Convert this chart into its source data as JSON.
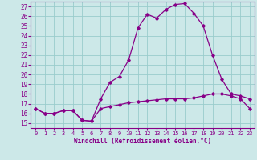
{
  "xlabel": "Windchill (Refroidissement éolien,°C)",
  "bg_color": "#cce8e8",
  "line_color": "#880088",
  "grid_color": "#99cccc",
  "xlim": [
    -0.5,
    23.5
  ],
  "ylim": [
    14.5,
    27.5
  ],
  "yticks": [
    15,
    16,
    17,
    18,
    19,
    20,
    21,
    22,
    23,
    24,
    25,
    26,
    27
  ],
  "xticks": [
    0,
    1,
    2,
    3,
    4,
    5,
    6,
    7,
    8,
    9,
    10,
    11,
    12,
    13,
    14,
    15,
    16,
    17,
    18,
    19,
    20,
    21,
    22,
    23
  ],
  "series1_x": [
    0,
    1,
    2,
    3,
    4,
    5,
    6,
    7,
    8,
    9,
    10,
    11,
    12,
    13,
    14,
    15,
    16,
    17,
    18,
    19,
    20,
    21,
    22,
    23
  ],
  "series1_y": [
    16.5,
    16.0,
    16.0,
    16.3,
    16.3,
    15.3,
    15.2,
    16.5,
    16.7,
    16.9,
    17.1,
    17.2,
    17.3,
    17.4,
    17.5,
    17.5,
    17.5,
    17.6,
    17.8,
    18.0,
    18.0,
    17.8,
    17.5,
    16.5
  ],
  "series2_x": [
    0,
    1,
    2,
    3,
    4,
    5,
    6,
    7,
    8,
    9,
    10,
    11,
    12,
    13,
    14,
    15,
    16,
    17,
    18,
    19,
    20,
    21,
    22,
    23
  ],
  "series2_y": [
    16.5,
    16.0,
    16.0,
    16.3,
    16.3,
    15.3,
    15.2,
    17.5,
    19.2,
    19.8,
    21.5,
    24.8,
    26.2,
    25.8,
    26.7,
    27.2,
    27.3,
    26.3,
    25.0,
    22.0,
    19.5,
    18.0,
    17.8,
    17.5
  ]
}
